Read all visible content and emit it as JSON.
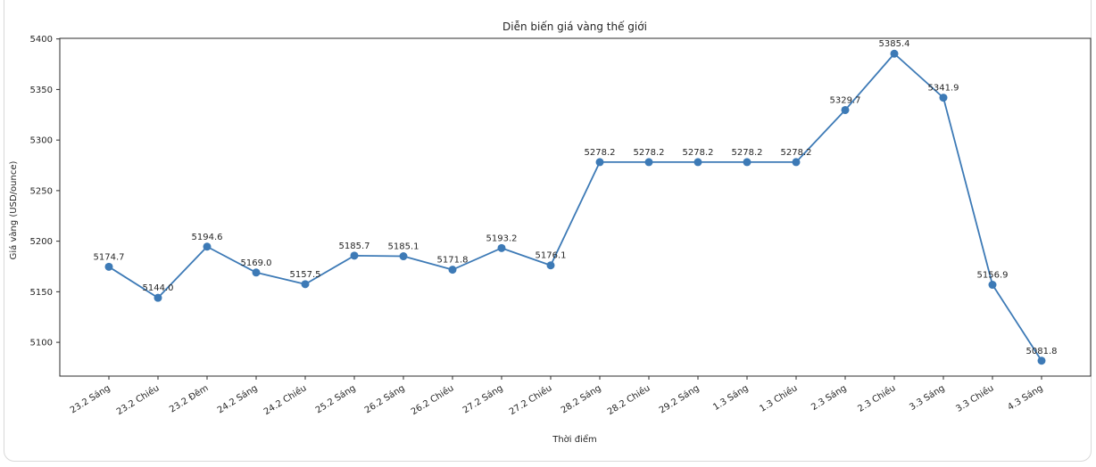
{
  "chart_data": {
    "type": "line",
    "title": "Diễn biến giá vàng thế giới",
    "xlabel": "Thời điểm",
    "ylabel": "Giá vàng (USD/ounce)",
    "categories": [
      "23.2 Sáng",
      "23.2 Chiều",
      "23.2 Đêm",
      "24.2 Sáng",
      "24.2 Chiều",
      "25.2 Sáng",
      "26.2 Sáng",
      "26.2 Chiều",
      "27.2 Sáng",
      "27.2 Chiều",
      "28.2 Sáng",
      "28.2 Chiều",
      "29.2 Sáng",
      "1.3 Sáng",
      "1.3 Chiều",
      "2.3 Sáng",
      "2.3 Chiều",
      "3.3 Sáng",
      "3.3 Chiều",
      "4.3 Sáng"
    ],
    "values": [
      5174.7,
      5144.0,
      5194.6,
      5169.0,
      5157.5,
      5185.7,
      5185.1,
      5171.8,
      5193.2,
      5176.1,
      5278.2,
      5278.2,
      5278.2,
      5278.2,
      5278.2,
      5329.7,
      5385.4,
      5341.9,
      5156.9,
      5081.8
    ],
    "point_labels": [
      "5174.7",
      "5144.0",
      "5194.6",
      "5169.0",
      "5157.5",
      "5185.7",
      "5185.1",
      "5171.8",
      "5193.2",
      "5176.1",
      "5278.2",
      "5278.2",
      "5278.2",
      "5278.2",
      "5278.2",
      "5329.7",
      "5385.4",
      "5341.9",
      "5156.9",
      "5081.8"
    ],
    "yticks": [
      5100,
      5150,
      5200,
      5250,
      5300,
      5350,
      5400
    ],
    "ylim": [
      5066.6,
      5400.6
    ],
    "grid": false,
    "legend_position": "none",
    "line_color": "#3d7ab6",
    "marker_color": "#3d7ab6",
    "axis_color": "#2b2b2b",
    "text_color": "#262626"
  }
}
